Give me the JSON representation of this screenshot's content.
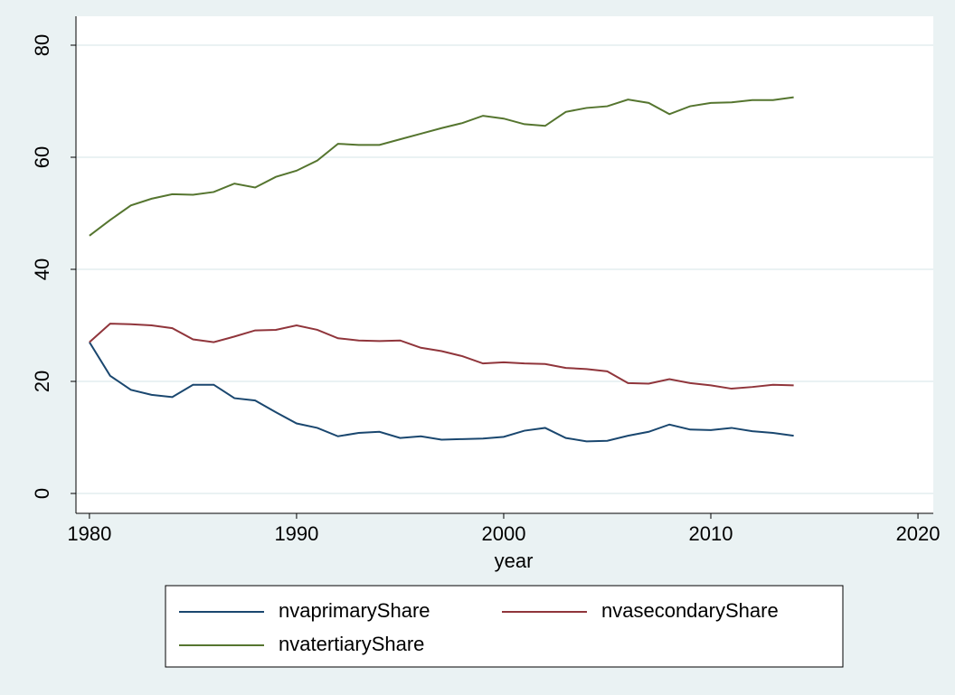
{
  "chart_data": {
    "type": "line",
    "x": [
      1980,
      1981,
      1982,
      1983,
      1984,
      1985,
      1986,
      1987,
      1988,
      1989,
      1990,
      1991,
      1992,
      1993,
      1994,
      1995,
      1996,
      1997,
      1998,
      1999,
      2000,
      2001,
      2002,
      2003,
      2004,
      2005,
      2006,
      2007,
      2008,
      2009,
      2010,
      2011,
      2012,
      2013,
      2014
    ],
    "series": [
      {
        "name": "nvaprimaryShare",
        "color": "#1a476f",
        "values": [
          27,
          21,
          18.5,
          17.6,
          17.2,
          19.4,
          19.4,
          17,
          16.6,
          14.5,
          12.5,
          11.7,
          10.2,
          10.8,
          11,
          9.9,
          10.2,
          9.6,
          9.7,
          9.8,
          10.1,
          11.2,
          11.7,
          9.9,
          9.3,
          9.4,
          10.3,
          11,
          12.3,
          11.4,
          11.3,
          11.7,
          11.1,
          10.8,
          10.3
        ]
      },
      {
        "name": "nvasecondaryShare",
        "color": "#90353b",
        "values": [
          27,
          30.3,
          30.2,
          30,
          29.5,
          27.5,
          27,
          28,
          29.1,
          29.2,
          30,
          29.2,
          27.7,
          27.3,
          27.2,
          27.3,
          26,
          25.4,
          24.5,
          23.2,
          23.4,
          23.2,
          23.1,
          22.4,
          22.2,
          21.8,
          19.7,
          19.6,
          20.4,
          19.7,
          19.3,
          18.7,
          19,
          19.4,
          19.3
        ]
      },
      {
        "name": "nvatertiaryShare",
        "color": "#55752f",
        "values": [
          46,
          48.8,
          51.4,
          52.6,
          53.4,
          53.3,
          53.8,
          55.3,
          54.6,
          56.5,
          57.6,
          59.4,
          62.4,
          62.2,
          62.2,
          63.2,
          64.2,
          65.2,
          66.1,
          67.4,
          66.9,
          65.9,
          65.6,
          68.1,
          68.8,
          69.1,
          70.3,
          69.7,
          67.7,
          69.1,
          69.7,
          69.8,
          70.2,
          70.2,
          70.7
        ]
      }
    ],
    "x_label": "year",
    "xlim": [
      1979.35,
      2020.74
    ],
    "xticks": [
      1980,
      1990,
      2000,
      2010,
      2020
    ],
    "ylim": [
      -3.55,
      85.16
    ],
    "yticks": [
      0,
      20,
      40,
      60,
      80
    ],
    "grid": true
  }
}
